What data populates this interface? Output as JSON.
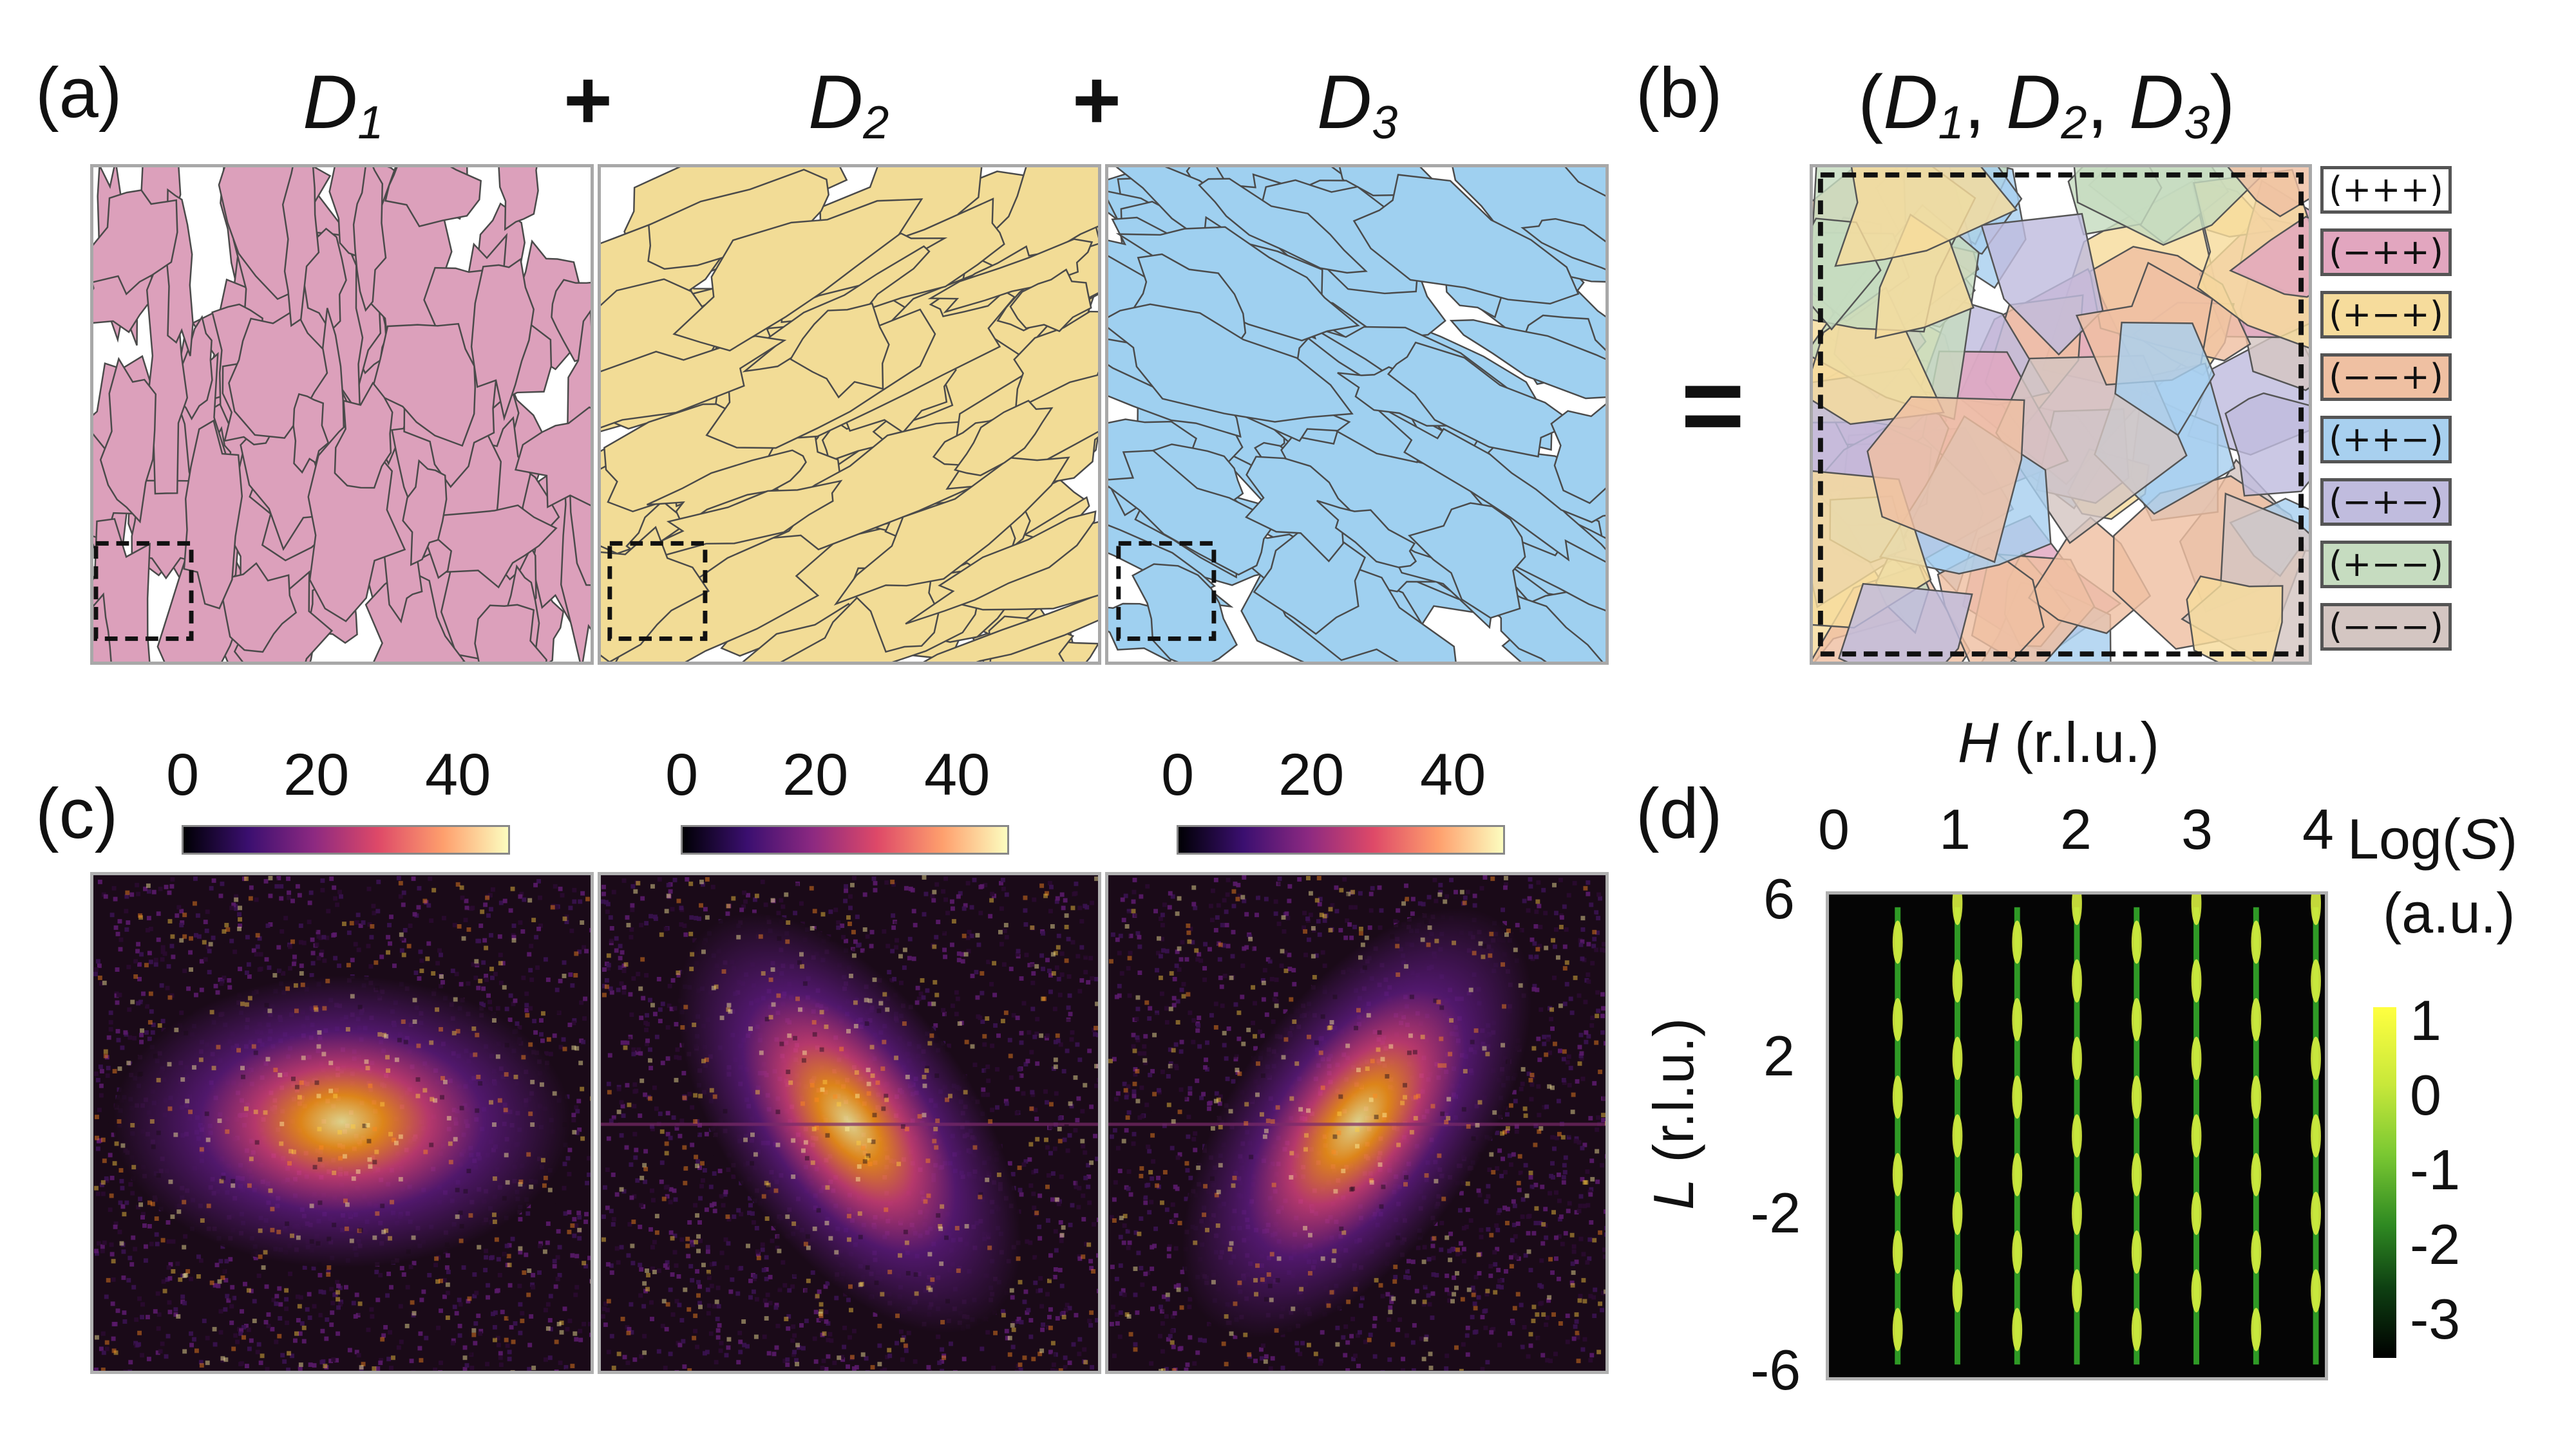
{
  "panel_labels": {
    "a": "(a)",
    "b": "(b)",
    "c": "(c)",
    "d": "(d)"
  },
  "operators": {
    "plus": "+",
    "equals": "="
  },
  "domains": [
    {
      "symbol": "D",
      "index": "1",
      "color": "#dca0bb"
    },
    {
      "symbol": "D",
      "index": "2",
      "color": "#f2dc96"
    },
    {
      "symbol": "D",
      "index": "3",
      "color": "#9fd0f0"
    }
  ],
  "combined_title": {
    "open": "(",
    "close": ")",
    "sep": ", "
  },
  "legend": [
    {
      "label": "(+++)",
      "color": "#ffffff"
    },
    {
      "label": "(−++)",
      "color": "#e2a6bf"
    },
    {
      "label": "(+−+)",
      "color": "#f6dc9c"
    },
    {
      "label": "(−−+)",
      "color": "#efc0a2"
    },
    {
      "label": "(++−)",
      "color": "#a8d0ef"
    },
    {
      "label": "(−+−)",
      "color": "#c0bcde"
    },
    {
      "label": "(+−−)",
      "color": "#c6dcc0"
    },
    {
      "label": "(−−−)",
      "color": "#d4c6c2"
    }
  ],
  "fft_colorbar": {
    "ticks": [
      "0",
      "20",
      "40"
    ]
  },
  "chart_data": {
    "type": "heatmap",
    "title": "",
    "xlabel_var": "H",
    "xlabel_unit": " (r.l.u.)",
    "ylabel_var": "L",
    "ylabel_unit": " (r.l.u.)",
    "x_ticks": [
      "0",
      "1",
      "2",
      "3",
      "4"
    ],
    "y_ticks": [
      "6",
      "2",
      "-2",
      "-6"
    ],
    "xlim": [
      0,
      4
    ],
    "ylim": [
      -6,
      6
    ],
    "rod_H": [
      0.5,
      1,
      1.5,
      2,
      2.5,
      3,
      3.5,
      4
    ],
    "colorbar_title_prefix": "Log(",
    "colorbar_title_var": "S",
    "colorbar_title_suffix": ")",
    "colorbar_unit": "(a.u.)",
    "colorbar_ticks": [
      "1",
      "0",
      "-1",
      "-2",
      "-3"
    ],
    "colorbar_range": [
      -3.5,
      1.2
    ]
  }
}
